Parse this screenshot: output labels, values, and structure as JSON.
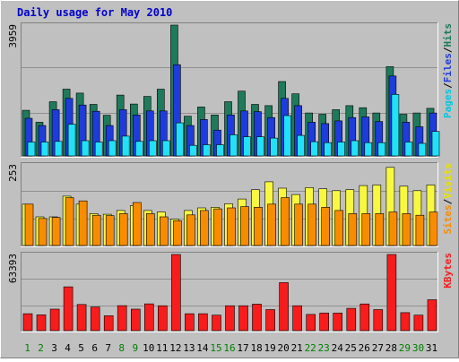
{
  "chart_data": [
    {
      "type": "bar",
      "title": "Daily usage for May 2010",
      "panel": "top",
      "categories": [
        "1",
        "2",
        "3",
        "4",
        "5",
        "6",
        "7",
        "8",
        "9",
        "10",
        "11",
        "12",
        "13",
        "14",
        "15",
        "16",
        "17",
        "18",
        "19",
        "20",
        "21",
        "22",
        "23",
        "24",
        "25",
        "26",
        "27",
        "28",
        "29",
        "30",
        "31"
      ],
      "weekend_days": [
        "1",
        "2",
        "8",
        "9",
        "15",
        "16",
        "22",
        "23",
        "29",
        "30"
      ],
      "ymax_label": "3959",
      "ylim": [
        0,
        3959
      ],
      "legend": [
        "Pages",
        "Files",
        "Hits"
      ],
      "series": [
        {
          "name": "Hits",
          "color": "#1e7a5a",
          "values": [
            1380,
            1020,
            1640,
            2020,
            1900,
            1560,
            1230,
            1840,
            1570,
            1800,
            2020,
            3959,
            1200,
            1480,
            1240,
            1640,
            1960,
            1560,
            1520,
            2250,
            1880,
            1300,
            1260,
            1400,
            1520,
            1460,
            1300,
            2700,
            1260,
            1300,
            1440
          ]
        },
        {
          "name": "Files",
          "color": "#1e3cdc",
          "values": [
            1140,
            920,
            1400,
            1740,
            1540,
            1350,
            920,
            1400,
            1240,
            1360,
            1360,
            2760,
            920,
            1100,
            780,
            1240,
            1360,
            1340,
            1160,
            1740,
            1520,
            1020,
            980,
            1060,
            1160,
            1180,
            1040,
            2420,
            1020,
            880,
            1300
          ]
        },
        {
          "name": "Pages",
          "color": "#22e0f8",
          "values": [
            420,
            420,
            440,
            960,
            460,
            420,
            460,
            600,
            440,
            460,
            460,
            1000,
            320,
            340,
            340,
            640,
            580,
            580,
            540,
            1220,
            620,
            430,
            400,
            420,
            460,
            400,
            400,
            1860,
            420,
            380,
            740
          ]
        }
      ]
    },
    {
      "type": "bar",
      "panel": "middle",
      "categories": [
        "1",
        "2",
        "3",
        "4",
        "5",
        "6",
        "7",
        "8",
        "9",
        "10",
        "11",
        "12",
        "13",
        "14",
        "15",
        "16",
        "17",
        "18",
        "19",
        "20",
        "21",
        "22",
        "23",
        "24",
        "25",
        "26",
        "27",
        "28",
        "29",
        "30",
        "31"
      ],
      "ymax_label": "253",
      "ylim": [
        0,
        253
      ],
      "legend": [
        "Sites",
        "Visits"
      ],
      "series": [
        {
          "name": "Visits",
          "color": "#f8f840",
          "values": [
            130,
            90,
            90,
            155,
            130,
            100,
            98,
            110,
            125,
            110,
            105,
            83,
            110,
            118,
            120,
            131,
            146,
            175,
            200,
            180,
            160,
            182,
            178,
            172,
            175,
            188,
            190,
            245,
            186,
            172,
            190
          ]
        },
        {
          "name": "Sites",
          "color": "#f88c00",
          "values": [
            130,
            85,
            88,
            150,
            140,
            95,
            94,
            100,
            135,
            100,
            90,
            78,
            96,
            110,
            115,
            118,
            122,
            120,
            130,
            150,
            130,
            130,
            120,
            110,
            100,
            100,
            100,
            105,
            100,
            95,
            105
          ]
        }
      ]
    },
    {
      "type": "bar",
      "panel": "bottom",
      "categories": [
        "1",
        "2",
        "3",
        "4",
        "5",
        "6",
        "7",
        "8",
        "9",
        "10",
        "11",
        "12",
        "13",
        "14",
        "15",
        "16",
        "17",
        "18",
        "19",
        "20",
        "21",
        "22",
        "23",
        "24",
        "25",
        "26",
        "27",
        "28",
        "29",
        "30",
        "31"
      ],
      "ymax_label": "63393",
      "ylim": [
        0,
        63393
      ],
      "legend": [
        "KBytes"
      ],
      "series": [
        {
          "name": "KBytes",
          "color": "#f81c1c",
          "values": [
            14100,
            13100,
            17900,
            36500,
            21800,
            19700,
            12400,
            20800,
            17900,
            22300,
            20700,
            63393,
            14100,
            14100,
            12900,
            20700,
            20700,
            22100,
            17500,
            40000,
            20700,
            13500,
            14600,
            14600,
            18600,
            22200,
            17500,
            63393,
            15000,
            12900,
            25700
          ]
        }
      ]
    }
  ]
}
